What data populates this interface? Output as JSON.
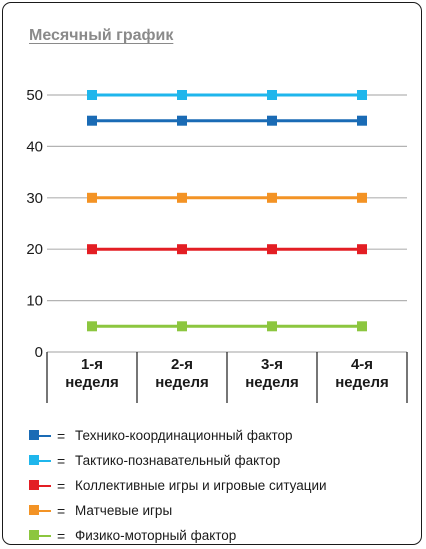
{
  "chart_data": {
    "type": "line",
    "title": "Месячный график",
    "categories": [
      "1-я неделя",
      "2-я неделя",
      "3-я неделя",
      "4-я неделя"
    ],
    "category_lines": [
      [
        "1-я",
        "неделя"
      ],
      [
        "2-я",
        "неделя"
      ],
      [
        "3-я",
        "неделя"
      ],
      [
        "4-я",
        "неделя"
      ]
    ],
    "ylim": [
      0,
      50
    ],
    "yticks": [
      0,
      10,
      20,
      30,
      40,
      50
    ],
    "grid": true,
    "legend_position": "bottom",
    "series": [
      {
        "name": "Технико-координационный фактор",
        "color": "#1a6bb5",
        "values": [
          45,
          45,
          45,
          45
        ]
      },
      {
        "name": "Тактико-познавательный фактор",
        "color": "#1fb6ec",
        "values": [
          50,
          50,
          50,
          50
        ]
      },
      {
        "name": "Коллективные игры и игровые ситуации",
        "color": "#e31e24",
        "values": [
          20,
          20,
          20,
          20
        ]
      },
      {
        "name": "Матчевые игры",
        "color": "#f39325",
        "values": [
          30,
          30,
          30,
          30
        ]
      },
      {
        "name": "Физико-моторный фактор",
        "color": "#8cc63f",
        "values": [
          5,
          5,
          5,
          5
        ]
      }
    ],
    "legend_separator": "="
  }
}
